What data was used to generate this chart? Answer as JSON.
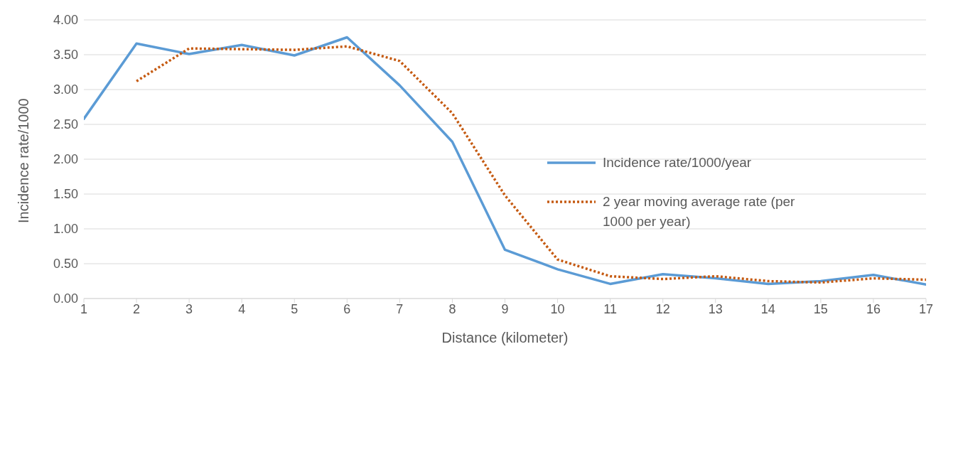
{
  "chart_data": {
    "type": "line",
    "xlabel": "Distance (kilometer)",
    "ylabel": "Incidence rate/1000",
    "x": [
      1,
      2,
      3,
      4,
      5,
      6,
      7,
      8,
      9,
      10,
      11,
      12,
      13,
      14,
      15,
      16,
      17
    ],
    "xlim": [
      1,
      17
    ],
    "xticks": [
      1,
      2,
      3,
      4,
      5,
      6,
      7,
      8,
      9,
      10,
      11,
      12,
      13,
      14,
      15,
      16,
      17
    ],
    "ylim": [
      0,
      4
    ],
    "yticks": [
      {
        "value": 0,
        "label": "0.00"
      },
      {
        "value": 0.5,
        "label": "0.50"
      },
      {
        "value": 1,
        "label": "1.00"
      },
      {
        "value": 1.5,
        "label": "1.50"
      },
      {
        "value": 2,
        "label": "2.00"
      },
      {
        "value": 2.5,
        "label": "2.50"
      },
      {
        "value": 3,
        "label": "3.00"
      },
      {
        "value": 3.5,
        "label": "3.50"
      },
      {
        "value": 4,
        "label": "4.00"
      }
    ],
    "grid": "y",
    "legend": "right",
    "marker": "none",
    "series": [
      {
        "name": "Incidence rate/1000/year",
        "color": "#5b9bd5",
        "line_style": "solid",
        "values": [
          2.58,
          3.66,
          3.51,
          3.64,
          3.49,
          3.75,
          3.06,
          2.25,
          0.7,
          0.42,
          0.21,
          0.35,
          0.29,
          0.21,
          0.25,
          0.34,
          0.2
        ]
      },
      {
        "name": "2 year moving average rate (per 1000 per year)",
        "color": "#c55a11",
        "line_style": "dotted",
        "values": [
          null,
          3.12,
          3.59,
          3.58,
          3.57,
          3.62,
          3.41,
          2.66,
          1.48,
          0.56,
          0.32,
          0.28,
          0.32,
          0.25,
          0.23,
          0.29,
          0.27
        ]
      }
    ]
  }
}
